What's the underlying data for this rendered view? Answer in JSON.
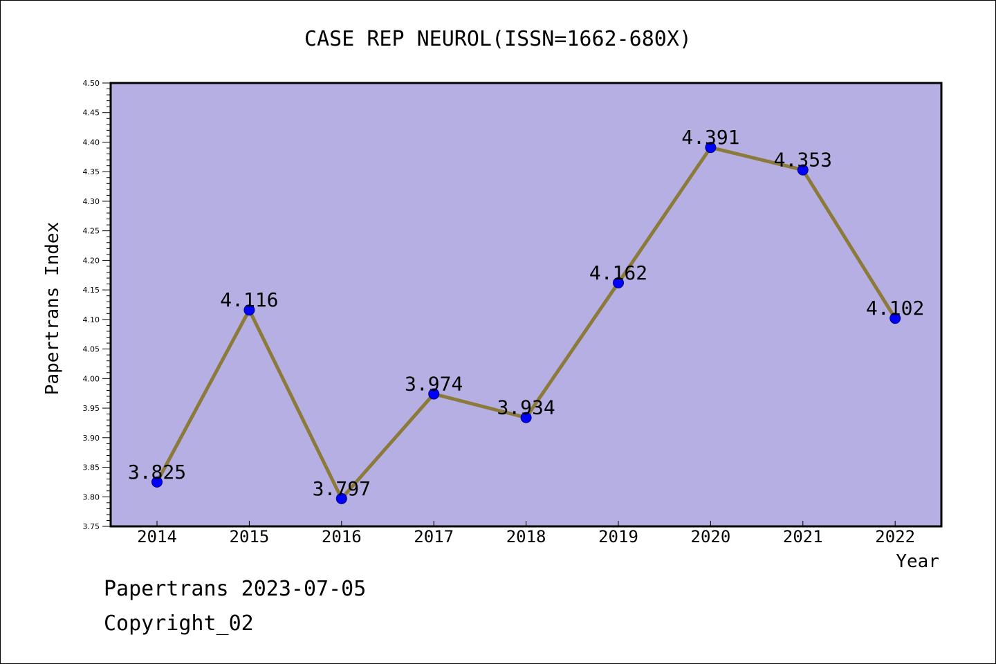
{
  "chart_data": {
    "type": "line",
    "title": "CASE REP NEUROL(ISSN=1662-680X)",
    "xlabel": "Year",
    "ylabel": "Papertrans Index",
    "categories": [
      "2014",
      "2015",
      "2016",
      "2017",
      "2018",
      "2019",
      "2020",
      "2021",
      "2022"
    ],
    "series": [
      {
        "name": "Papertrans Index",
        "values": [
          3.825,
          4.116,
          3.797,
          3.974,
          3.934,
          4.162,
          4.391,
          4.353,
          4.102
        ],
        "labels": [
          "3.825",
          "4.116",
          "3.797",
          "3.974",
          "3.934",
          "4.162",
          "4.391",
          "4.353",
          "4.102"
        ]
      }
    ],
    "ylim": [
      3.75,
      4.5
    ],
    "yticks": [
      "3.75",
      "3.80",
      "3.85",
      "3.90",
      "3.95",
      "4.00",
      "4.05",
      "4.10",
      "4.15",
      "4.20",
      "4.25",
      "4.30",
      "4.35",
      "4.40",
      "4.45",
      "4.50"
    ],
    "grid": false,
    "colors": {
      "plot_background": "#b5afe3",
      "line": "#8b7a3a",
      "marker": "#0000ff"
    }
  },
  "footer": {
    "line1": "Papertrans 2023-07-05",
    "line2": "Copyright_02"
  }
}
